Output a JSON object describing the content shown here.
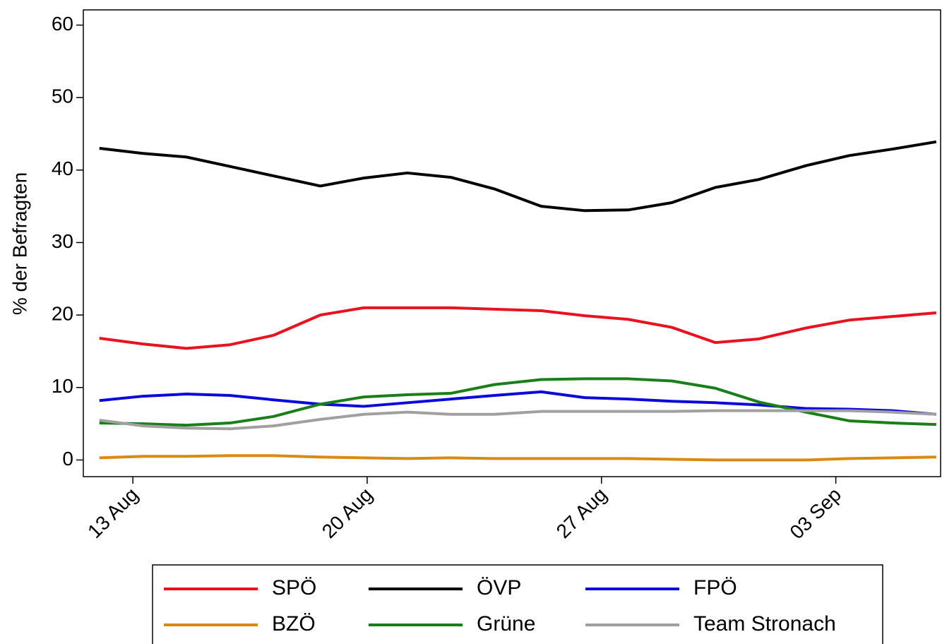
{
  "chart_data": {
    "type": "line",
    "ylabel": "% der Befragten",
    "x": [
      12,
      13.3,
      14.6,
      15.9,
      17.2,
      18.6,
      19.9,
      21.2,
      22.5,
      23.8,
      25.2,
      26.5,
      27.8,
      29.1,
      30.4,
      31.7,
      33.1,
      34.4,
      35.7,
      37
    ],
    "xlim": [
      11.52,
      37.13
    ],
    "xticks": [
      {
        "value": 13,
        "label": "13 Aug"
      },
      {
        "value": 20,
        "label": "20 Aug"
      },
      {
        "value": 27,
        "label": "27 Aug"
      },
      {
        "value": 34,
        "label": "03 Sep"
      }
    ],
    "ylim": [
      -2.3,
      62.1
    ],
    "yticks": [
      0,
      10,
      20,
      30,
      40,
      50,
      60
    ],
    "legend": "bottom",
    "series": [
      {
        "name": "SPÖ",
        "color": "#e8131f",
        "values": [
          16.8,
          16,
          15.4,
          15.9,
          17.2,
          20,
          21,
          21,
          21,
          20.8,
          20.6,
          19.9,
          19.4,
          18.3,
          16.2,
          16.7,
          18.2,
          19.3,
          19.8,
          20.3
        ]
      },
      {
        "name": "ÖVP",
        "color": "#000000",
        "values": [
          43,
          42.3,
          41.8,
          40.5,
          39.2,
          37.8,
          38.9,
          39.6,
          39,
          37.4,
          35,
          34.4,
          34.5,
          35.5,
          37.6,
          38.7,
          40.6,
          42,
          42.9,
          43.9
        ]
      },
      {
        "name": "FPÖ",
        "color": "#0a0adc",
        "values": [
          8.2,
          8.8,
          9.1,
          8.9,
          8.3,
          7.7,
          7.4,
          7.9,
          8.4,
          8.9,
          9.4,
          8.6,
          8.4,
          8.1,
          7.9,
          7.6,
          7.1,
          7,
          6.8,
          6.3
        ]
      },
      {
        "name": "BZÖ",
        "color": "#d98a12",
        "values": [
          0.3,
          0.5,
          0.5,
          0.6,
          0.6,
          0.4,
          0.3,
          0.2,
          0.3,
          0.2,
          0.2,
          0.2,
          0.2,
          0.1,
          0,
          0,
          0,
          0.2,
          0.3,
          0.4
        ]
      },
      {
        "name": "Grüne",
        "color": "#1a7f1a",
        "values": [
          5.1,
          5,
          4.8,
          5.1,
          6,
          7.7,
          8.7,
          9,
          9.2,
          10.4,
          11.1,
          11.2,
          11.2,
          10.9,
          9.9,
          8,
          6.6,
          5.4,
          5.1,
          4.9
        ]
      },
      {
        "name": "Team Stronach",
        "color": "#a0a0a0",
        "values": [
          5.5,
          4.7,
          4.4,
          4.3,
          4.7,
          5.6,
          6.3,
          6.6,
          6.3,
          6.3,
          6.7,
          6.7,
          6.7,
          6.7,
          6.8,
          6.8,
          6.8,
          6.8,
          6.6,
          6.3
        ]
      }
    ]
  }
}
